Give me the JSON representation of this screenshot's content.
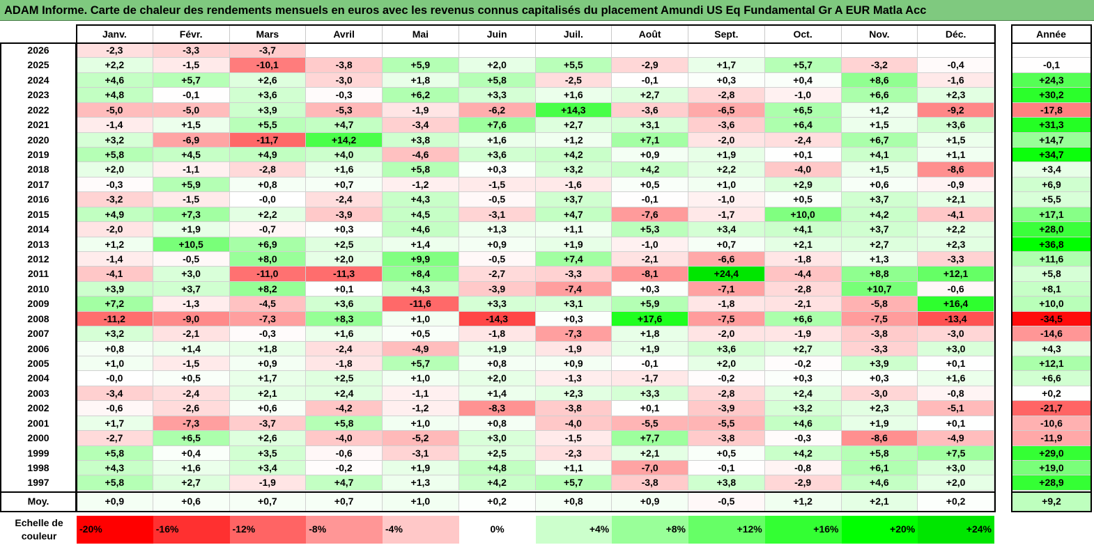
{
  "title": "ADAM Informe. Carte de chaleur des rendements mensuels en euros avec les revenus connus capitalisés du placement Amundi US Eq Fundamental Gr A EUR Matla Acc",
  "chart_data": {
    "type": "heatmap",
    "columns": [
      "Janv.",
      "Févr.",
      "Mars",
      "Avril",
      "Mai",
      "Juin",
      "Juil.",
      "Août",
      "Sept.",
      "Oct.",
      "Nov.",
      "Déc."
    ],
    "year_column": "Année",
    "rows": [
      {
        "year": "2026",
        "months": [
          "-2,3",
          "-3,3",
          "-3,7",
          "",
          "",
          "",
          "",
          "",
          "",
          "",
          "",
          ""
        ],
        "annual": ""
      },
      {
        "year": "2025",
        "months": [
          "+2,2",
          "-1,5",
          "-10,1",
          "-3,8",
          "+5,9",
          "+2,0",
          "+5,5",
          "-2,9",
          "+1,7",
          "+5,7",
          "-3,2",
          "-0,4"
        ],
        "annual": "-0,1"
      },
      {
        "year": "2024",
        "months": [
          "+4,6",
          "+5,7",
          "+2,6",
          "-3,0",
          "+1,8",
          "+5,8",
          "-2,5",
          "-0,1",
          "+0,3",
          "+0,4",
          "+8,6",
          "-1,6"
        ],
        "annual": "+24,3"
      },
      {
        "year": "2023",
        "months": [
          "+4,8",
          "-0,1",
          "+3,6",
          "-0,3",
          "+6,2",
          "+3,3",
          "+1,6",
          "+2,7",
          "-2,8",
          "-1,0",
          "+6,6",
          "+2,3"
        ],
        "annual": "+30,2"
      },
      {
        "year": "2022",
        "months": [
          "-5,0",
          "-5,0",
          "+3,9",
          "-5,3",
          "-1,9",
          "-6,2",
          "+14,3",
          "-3,6",
          "-6,5",
          "+6,5",
          "+1,2",
          "-9,2"
        ],
        "annual": "-17,8"
      },
      {
        "year": "2021",
        "months": [
          "-1,4",
          "+1,5",
          "+5,5",
          "+4,7",
          "-3,4",
          "+7,6",
          "+2,7",
          "+3,1",
          "-3,6",
          "+6,4",
          "+1,5",
          "+3,6"
        ],
        "annual": "+31,3"
      },
      {
        "year": "2020",
        "months": [
          "+3,2",
          "-6,9",
          "-11,7",
          "+14,2",
          "+3,8",
          "+1,6",
          "+1,2",
          "+7,1",
          "-2,0",
          "-2,4",
          "+6,7",
          "+1,5"
        ],
        "annual": "+14,7"
      },
      {
        "year": "2019",
        "months": [
          "+5,8",
          "+4,5",
          "+4,9",
          "+4,0",
          "-4,6",
          "+3,6",
          "+4,2",
          "+0,9",
          "+1,9",
          "+0,1",
          "+4,1",
          "+1,1"
        ],
        "annual": "+34,7"
      },
      {
        "year": "2018",
        "months": [
          "+2,0",
          "-1,1",
          "-2,8",
          "+1,6",
          "+5,8",
          "+0,3",
          "+3,2",
          "+4,2",
          "+2,2",
          "-4,0",
          "+1,5",
          "-8,6"
        ],
        "annual": "+3,4"
      },
      {
        "year": "2017",
        "months": [
          "-0,3",
          "+5,9",
          "+0,8",
          "+0,7",
          "-1,2",
          "-1,5",
          "-1,6",
          "+0,5",
          "+1,0",
          "+2,9",
          "+0,6",
          "-0,9"
        ],
        "annual": "+6,9"
      },
      {
        "year": "2016",
        "months": [
          "-3,2",
          "-1,5",
          "-0,0",
          "-2,4",
          "+4,3",
          "-0,5",
          "+3,7",
          "-0,1",
          "-1,0",
          "+0,5",
          "+3,7",
          "+2,1"
        ],
        "annual": "+5,5"
      },
      {
        "year": "2015",
        "months": [
          "+4,9",
          "+7,3",
          "+2,2",
          "-3,9",
          "+4,5",
          "-3,1",
          "+4,7",
          "-7,6",
          "-1,7",
          "+10,0",
          "+4,2",
          "-4,1"
        ],
        "annual": "+17,1"
      },
      {
        "year": "2014",
        "months": [
          "-2,0",
          "+1,9",
          "-0,7",
          "+0,3",
          "+4,6",
          "+1,3",
          "+1,1",
          "+5,3",
          "+3,4",
          "+4,1",
          "+3,7",
          "+2,2"
        ],
        "annual": "+28,0"
      },
      {
        "year": "2013",
        "months": [
          "+1,2",
          "+10,5",
          "+6,9",
          "+2,5",
          "+1,4",
          "+0,9",
          "+1,9",
          "-1,0",
          "+0,7",
          "+2,1",
          "+2,7",
          "+2,3"
        ],
        "annual": "+36,8"
      },
      {
        "year": "2012",
        "months": [
          "-1,4",
          "-0,5",
          "+8,0",
          "+2,0",
          "+9,9",
          "-0,5",
          "+7,4",
          "-2,1",
          "-6,6",
          "-1,8",
          "+1,3",
          "-3,3"
        ],
        "annual": "+11,6"
      },
      {
        "year": "2011",
        "months": [
          "-4,1",
          "+3,0",
          "-11,0",
          "-11,3",
          "+8,4",
          "-2,7",
          "-3,3",
          "-8,1",
          "+24,4",
          "-4,4",
          "+8,8",
          "+12,1"
        ],
        "annual": "+5,8"
      },
      {
        "year": "2010",
        "months": [
          "+3,9",
          "+3,7",
          "+8,2",
          "+0,1",
          "+4,3",
          "-3,9",
          "-7,4",
          "+0,3",
          "-7,1",
          "-2,8",
          "+10,7",
          "-0,6"
        ],
        "annual": "+8,1"
      },
      {
        "year": "2009",
        "months": [
          "+7,2",
          "-1,3",
          "-4,5",
          "+3,6",
          "-11,6",
          "+3,3",
          "+3,1",
          "+5,9",
          "-1,8",
          "-2,1",
          "-5,8",
          "+16,4"
        ],
        "annual": "+10,0"
      },
      {
        "year": "2008",
        "months": [
          "-11,2",
          "-9,0",
          "-7,3",
          "+8,3",
          "+1,0",
          "-14,3",
          "+0,3",
          "+17,6",
          "-7,5",
          "+6,6",
          "-7,5",
          "-13,4"
        ],
        "annual": "-34,5"
      },
      {
        "year": "2007",
        "months": [
          "+3,2",
          "-2,1",
          "-0,3",
          "+1,6",
          "+0,5",
          "-1,8",
          "-7,3",
          "+1,8",
          "-2,0",
          "-1,9",
          "-3,8",
          "-3,0"
        ],
        "annual": "-14,6"
      },
      {
        "year": "2006",
        "months": [
          "+0,8",
          "+1,4",
          "+1,8",
          "-2,4",
          "-4,9",
          "+1,9",
          "-1,9",
          "+1,9",
          "+3,6",
          "+2,7",
          "-3,3",
          "+3,0"
        ],
        "annual": "+4,3"
      },
      {
        "year": "2005",
        "months": [
          "+1,0",
          "-1,5",
          "+0,9",
          "-1,8",
          "+5,7",
          "+0,8",
          "+0,9",
          "-0,1",
          "+2,0",
          "-0,2",
          "+3,9",
          "+0,1"
        ],
        "annual": "+12,1"
      },
      {
        "year": "2004",
        "months": [
          "-0,0",
          "+0,5",
          "+1,7",
          "+2,5",
          "+1,0",
          "+2,0",
          "-1,3",
          "-1,7",
          "-0,2",
          "+0,3",
          "+0,3",
          "+1,6"
        ],
        "annual": "+6,6"
      },
      {
        "year": "2003",
        "months": [
          "-3,4",
          "-2,4",
          "+2,1",
          "+2,4",
          "-1,1",
          "+1,4",
          "+2,3",
          "+3,3",
          "-2,8",
          "+2,4",
          "-3,0",
          "-0,8"
        ],
        "annual": "+0,2"
      },
      {
        "year": "2002",
        "months": [
          "-0,6",
          "-2,6",
          "+0,6",
          "-4,2",
          "-1,2",
          "-8,3",
          "-3,8",
          "+0,1",
          "-3,9",
          "+3,2",
          "+2,3",
          "-5,1"
        ],
        "annual": "-21,7"
      },
      {
        "year": "2001",
        "months": [
          "+1,7",
          "-7,3",
          "-3,7",
          "+5,8",
          "+1,0",
          "+0,8",
          "-4,0",
          "-5,5",
          "-5,5",
          "+4,6",
          "+1,9",
          "+0,1"
        ],
        "annual": "-10,6"
      },
      {
        "year": "2000",
        "months": [
          "-2,7",
          "+6,5",
          "+2,6",
          "-4,0",
          "-5,2",
          "+3,0",
          "-1,5",
          "+7,7",
          "-3,8",
          "-0,3",
          "-8,6",
          "-4,9"
        ],
        "annual": "-11,9"
      },
      {
        "year": "1999",
        "months": [
          "+5,8",
          "+0,4",
          "+3,5",
          "-0,6",
          "-3,1",
          "+2,5",
          "-2,3",
          "+2,1",
          "+0,5",
          "+4,2",
          "+5,8",
          "+7,5"
        ],
        "annual": "+29,0"
      },
      {
        "year": "1998",
        "months": [
          "+4,3",
          "+1,6",
          "+3,4",
          "-0,2",
          "+1,9",
          "+4,8",
          "+1,1",
          "-7,0",
          "-0,1",
          "-0,8",
          "+6,1",
          "+3,0"
        ],
        "annual": "+19,0"
      },
      {
        "year": "1997",
        "months": [
          "+5,8",
          "+2,7",
          "-1,9",
          "+4,7",
          "+1,3",
          "+4,2",
          "+5,7",
          "-3,8",
          "+3,8",
          "-2,9",
          "+4,6",
          "+2,0"
        ],
        "annual": "+28,9"
      }
    ],
    "average_row": {
      "label": "Moy.",
      "months": [
        "+0,9",
        "+0,6",
        "+0,7",
        "+0,7",
        "+1,0",
        "+0,2",
        "+0,8",
        "+0,9",
        "-0,5",
        "+1,2",
        "+2,1",
        "+0,2"
      ],
      "annual": "+9,2"
    },
    "color_scale": {
      "label": "Echelle de couleur",
      "stops": [
        {
          "label": "-20%",
          "value": -20,
          "color": "#ff0000"
        },
        {
          "label": "-16%",
          "value": -16,
          "color": "#ff3030"
        },
        {
          "label": "-12%",
          "value": -12,
          "color": "#ff6464"
        },
        {
          "label": "-8%",
          "value": -8,
          "color": "#ff9696"
        },
        {
          "label": "-4%",
          "value": -4,
          "color": "#ffc8c8"
        },
        {
          "label": "0%",
          "value": 0,
          "color": "#ffffff"
        },
        {
          "label": "+4%",
          "value": 4,
          "color": "#ccffcc"
        },
        {
          "label": "+8%",
          "value": 8,
          "color": "#99ff99"
        },
        {
          "label": "+12%",
          "value": 12,
          "color": "#66ff66"
        },
        {
          "label": "+16%",
          "value": 16,
          "color": "#33ff33"
        },
        {
          "label": "+20%",
          "value": 20,
          "color": "#00ff00"
        },
        {
          "label": "+24%",
          "value": 24,
          "color": "#00e600"
        }
      ]
    }
  }
}
